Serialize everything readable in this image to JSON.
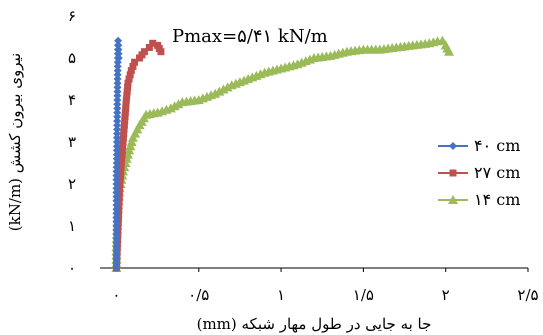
{
  "chart_data": {
    "type": "line",
    "xlabel": "جا به جایی در طول مهار شبکه (mm)",
    "ylabel": "نیروی بیرون کشش (kN/m)",
    "xlim": [
      -0.1,
      2.5
    ],
    "ylim": [
      0,
      6
    ],
    "xticks": [
      0,
      0.5,
      1,
      1.5,
      2,
      2.5
    ],
    "xtick_labels": [
      "۰",
      "۰/۵",
      "۱",
      "۱/۵",
      "۲",
      "۲/۵"
    ],
    "yticks": [
      0,
      1,
      2,
      3,
      4,
      5,
      6
    ],
    "ytick_labels": [
      "۰",
      "۱",
      "۲",
      "۳",
      "۴",
      "۵",
      "۶"
    ],
    "annotation": "Pmax=۵/۴۱ kN/m",
    "grid": false,
    "legend_position": "right",
    "series": [
      {
        "name": "۴۰ cm",
        "color": "#4472C4",
        "marker": "diamond",
        "points": [
          [
            0,
            0
          ],
          [
            0,
            0.3
          ],
          [
            0,
            0.6
          ],
          [
            0,
            1.0
          ],
          [
            0,
            1.4
          ],
          [
            0,
            1.8
          ],
          [
            0,
            2.2
          ],
          [
            0.002,
            2.6
          ],
          [
            0.003,
            3.0
          ],
          [
            0.004,
            3.4
          ],
          [
            0.005,
            3.8
          ],
          [
            0.006,
            4.2
          ],
          [
            0.007,
            4.6
          ],
          [
            0.008,
            4.9
          ],
          [
            0.009,
            5.2
          ],
          [
            0.01,
            5.41
          ],
          [
            0.012,
            5.2
          ],
          [
            0.014,
            5.0
          ]
        ]
      },
      {
        "name": "۲۷ cm",
        "color": "#C0504D",
        "marker": "square",
        "points": [
          [
            0,
            0
          ],
          [
            0.005,
            0.5
          ],
          [
            0.01,
            1.0
          ],
          [
            0.015,
            1.5
          ],
          [
            0.02,
            2.0
          ],
          [
            0.03,
            2.5
          ],
          [
            0.04,
            3.0
          ],
          [
            0.05,
            3.5
          ],
          [
            0.06,
            4.0
          ],
          [
            0.07,
            4.4
          ],
          [
            0.09,
            4.7
          ],
          [
            0.11,
            4.9
          ],
          [
            0.14,
            5.0
          ],
          [
            0.17,
            5.15
          ],
          [
            0.2,
            5.25
          ],
          [
            0.22,
            5.35
          ],
          [
            0.25,
            5.3
          ],
          [
            0.27,
            5.15
          ]
        ]
      },
      {
        "name": "۱۴ cm",
        "color": "#9BBB59",
        "marker": "triangle",
        "points": [
          [
            0,
            0
          ],
          [
            0,
            0.5
          ],
          [
            0.005,
            1.0
          ],
          [
            0.01,
            1.5
          ],
          [
            0.02,
            1.9
          ],
          [
            0.04,
            2.3
          ],
          [
            0.07,
            2.7
          ],
          [
            0.1,
            3.1
          ],
          [
            0.14,
            3.4
          ],
          [
            0.18,
            3.65
          ],
          [
            0.25,
            3.7
          ],
          [
            0.33,
            3.8
          ],
          [
            0.4,
            3.95
          ],
          [
            0.5,
            4.0
          ],
          [
            0.6,
            4.15
          ],
          [
            0.7,
            4.35
          ],
          [
            0.8,
            4.5
          ],
          [
            0.9,
            4.65
          ],
          [
            1.0,
            4.75
          ],
          [
            1.1,
            4.85
          ],
          [
            1.2,
            5.0
          ],
          [
            1.3,
            5.05
          ],
          [
            1.4,
            5.15
          ],
          [
            1.5,
            5.2
          ],
          [
            1.6,
            5.2
          ],
          [
            1.7,
            5.25
          ],
          [
            1.8,
            5.3
          ],
          [
            1.9,
            5.35
          ],
          [
            1.95,
            5.4
          ],
          [
            1.98,
            5.41
          ],
          [
            2.0,
            5.3
          ],
          [
            2.02,
            5.15
          ]
        ]
      }
    ]
  }
}
